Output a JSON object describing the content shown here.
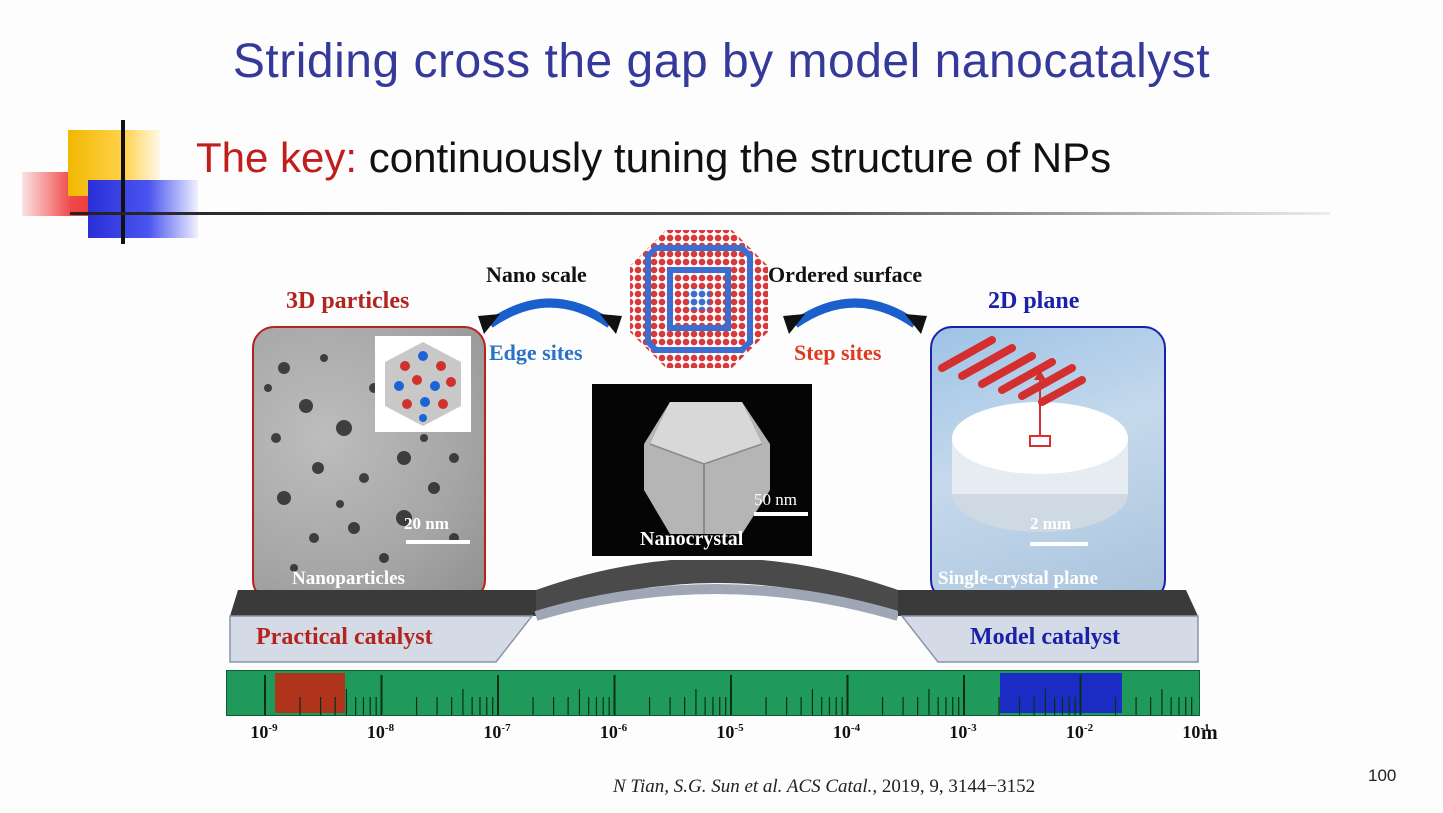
{
  "slide": {
    "title": "Striding cross the gap by model nanocatalyst",
    "subtitle_key": "The key:",
    "subtitle_rest": " continuously tuning the structure of NPs",
    "page_number": "100",
    "citation_authors": "N Tian, S.G. Sun et al. ",
    "citation_journal": "ACS Catal.,",
    "citation_details": " 2019, 9, 3144−3152"
  },
  "figure": {
    "left_heading": "3D particles",
    "right_heading": "2D plane",
    "nano_scale": "Nano scale",
    "edge_sites": "Edge sites",
    "ordered_surface": "Ordered surface",
    "step_sites": "Step sites",
    "left_scale_bar": "20 nm",
    "left_caption": "Nanoparticles",
    "center_scale_bar": "50 nm",
    "center_caption": "Nanocrystal",
    "right_scale_bar": "2 mm",
    "right_caption": "Single-crystal plane",
    "left_platform": "Practical catalyst",
    "right_platform": "Model catalyst",
    "axis_unit": "m",
    "axis_ticks": [
      {
        "base": "10",
        "exp": "-9"
      },
      {
        "base": "10",
        "exp": "-8"
      },
      {
        "base": "10",
        "exp": "-7"
      },
      {
        "base": "10",
        "exp": "-6"
      },
      {
        "base": "10",
        "exp": "-5"
      },
      {
        "base": "10",
        "exp": "-4"
      },
      {
        "base": "10",
        "exp": "-3"
      },
      {
        "base": "10",
        "exp": "-2"
      },
      {
        "base": "10",
        "exp": "-1"
      }
    ],
    "colors": {
      "title": "#35399a",
      "key": "#c21d1d",
      "practical": "#b3241e",
      "model": "#1b22a8",
      "edge_sites": "#2a72c8",
      "step_sites": "#e03a1e",
      "scale_bar": "#1f9a5a"
    }
  }
}
